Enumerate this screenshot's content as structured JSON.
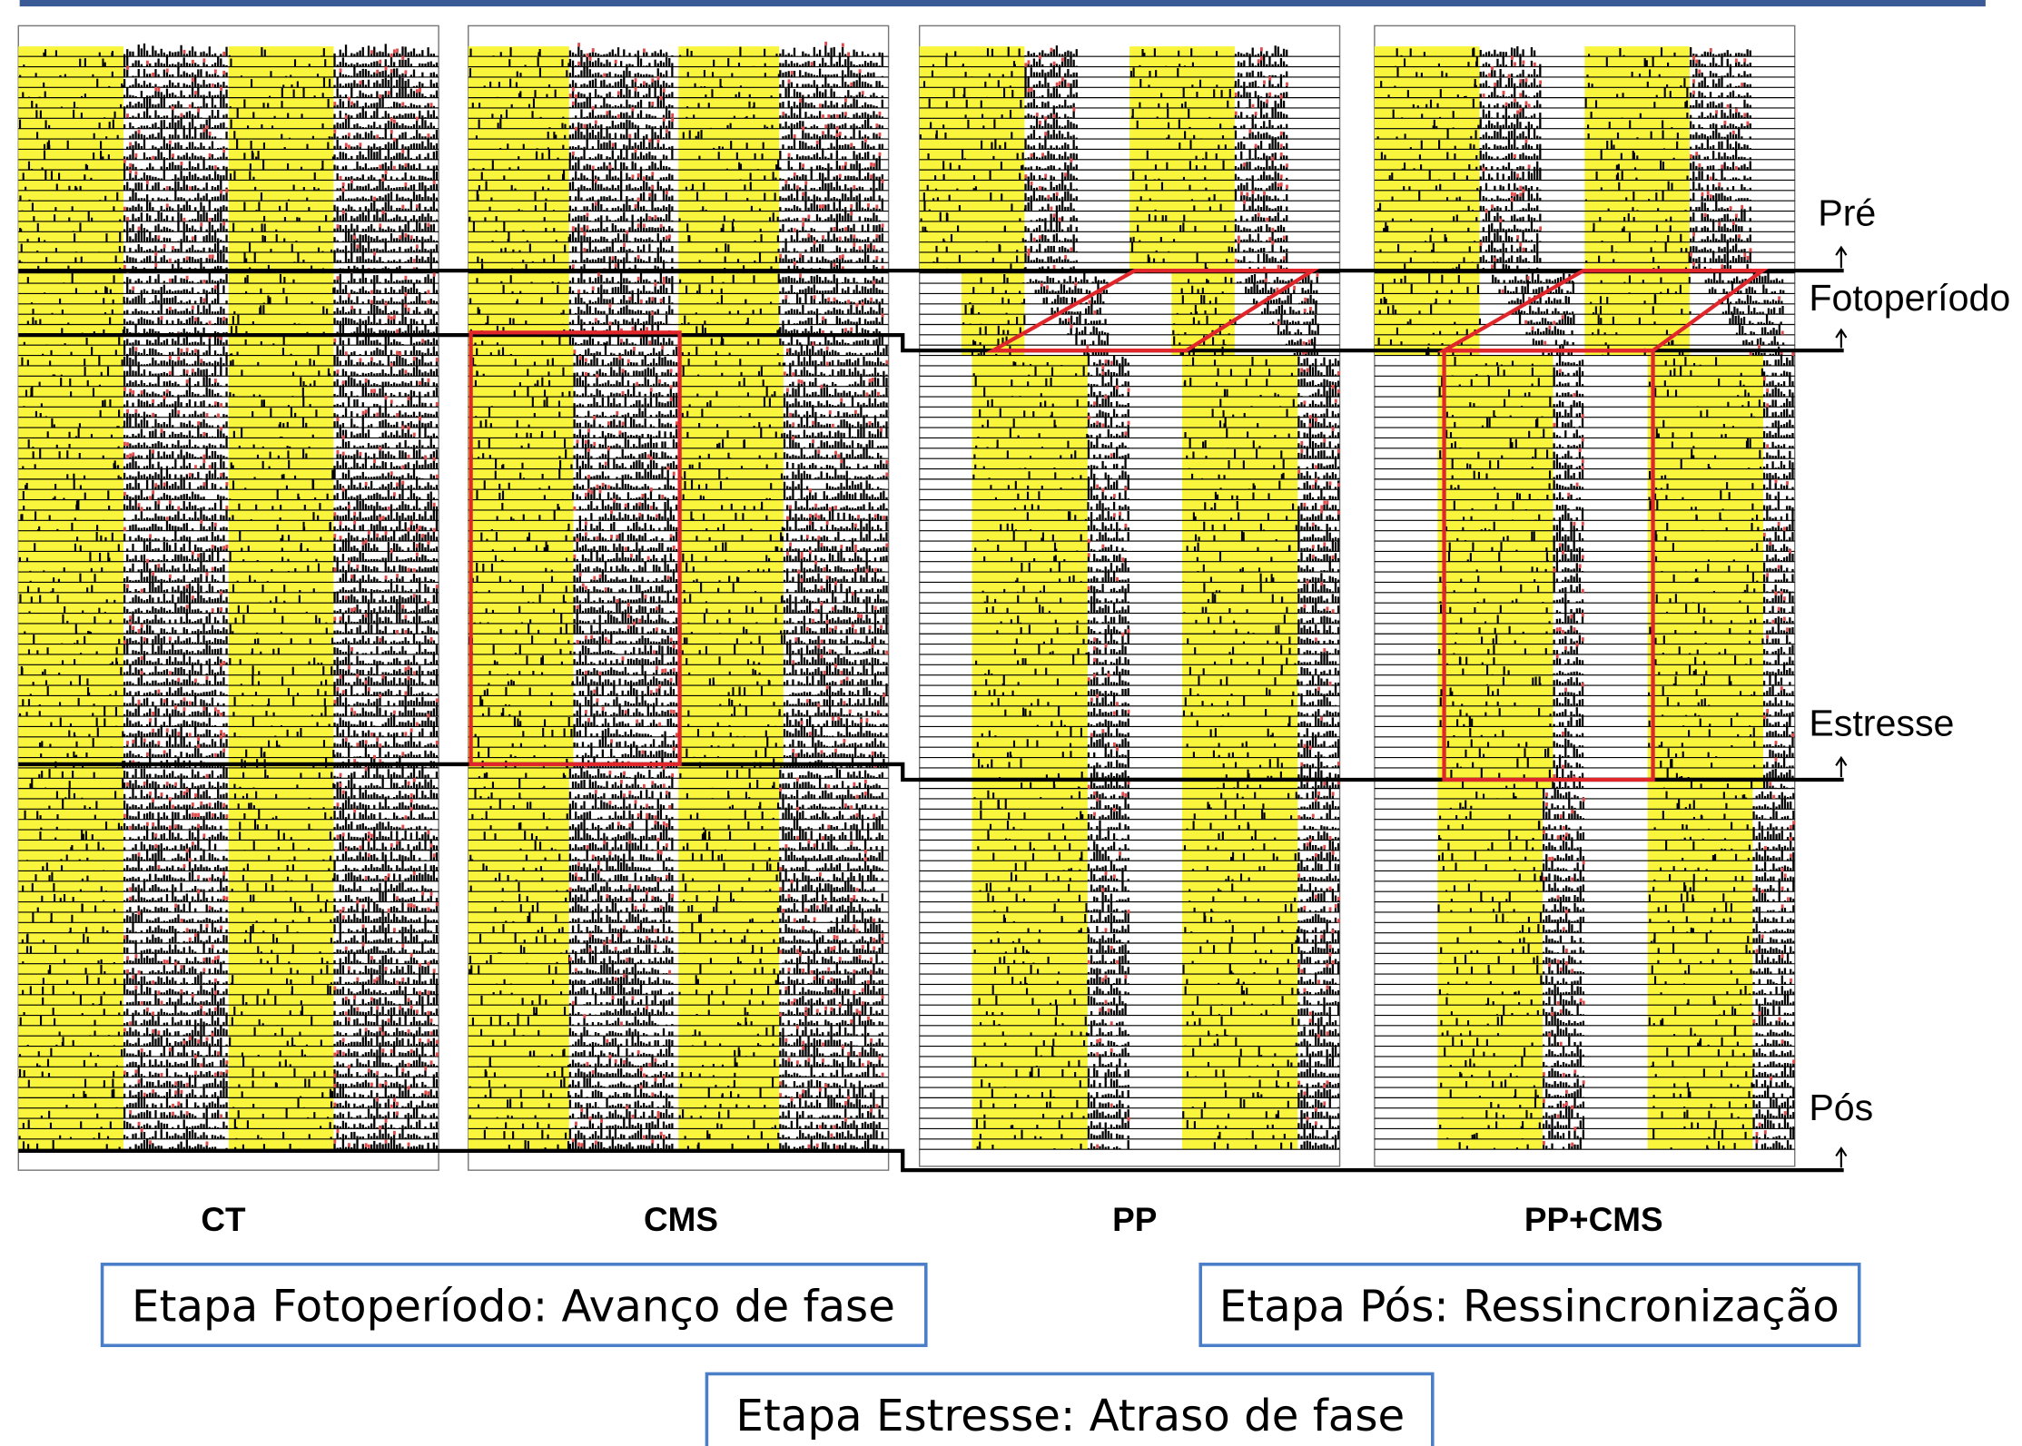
{
  "panels": [
    {
      "label": "CT"
    },
    {
      "label": "CMS"
    },
    {
      "label": "PP"
    },
    {
      "label": "PP+CMS"
    }
  ],
  "phases": [
    {
      "label": "Pré"
    },
    {
      "label": "Fotoperíodo"
    },
    {
      "label": "Estresse"
    },
    {
      "label": "Pós"
    }
  ],
  "notes": [
    {
      "text": "Etapa Fotoperíodo: Avanço de fase"
    },
    {
      "text": "Etapa Pós: Ressincronização"
    },
    {
      "text": "Etapa Estresse: Atraso de fase"
    }
  ]
}
